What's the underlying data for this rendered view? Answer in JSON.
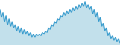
{
  "chart_data": {
    "type": "area",
    "values": [
      38,
      33,
      36,
      30,
      34,
      28,
      32,
      27,
      30,
      26,
      28,
      24,
      27,
      23,
      26,
      22,
      25,
      22,
      24,
      21,
      23,
      20,
      22,
      20,
      22,
      21,
      22,
      21,
      23,
      22,
      24,
      23,
      26,
      25,
      28,
      27,
      30,
      29,
      32,
      31,
      34,
      33,
      36,
      34,
      37,
      35,
      38,
      36,
      39,
      37,
      40,
      38,
      41,
      39,
      42,
      40,
      43,
      39,
      41,
      38,
      40,
      35,
      38,
      33,
      36,
      30,
      33,
      27,
      29,
      24,
      26,
      21,
      23,
      19,
      21,
      18,
      20,
      17,
      19,
      16
    ],
    "colors": [
      "#3399cc",
      "#99ccdd"
    ],
    "xlim": [
      0,
      79
    ],
    "ylim": [
      15,
      44
    ],
    "grid": false,
    "tick_labels": false
  }
}
